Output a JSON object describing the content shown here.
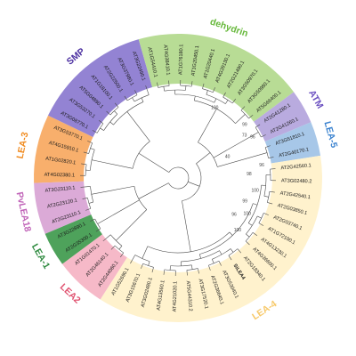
{
  "groups": [
    {
      "name": "LEA-3",
      "color": "#f7a85f",
      "text_color": "#f08a1e",
      "leaves": [
        "AT4G02380.1",
        "AT1G02820.1",
        "AT4G15910.1",
        "AT3G53770.1"
      ]
    },
    {
      "name": "SMP",
      "color": "#8a78cf",
      "text_color": "#4b2fa0",
      "leaves": [
        "AT3G08770.1",
        "AT3G53270.1",
        "AT5G04890.1",
        "AT1G18100.1",
        "AT2G22500.1",
        "AT3G37980.1",
        "AT3G22490.1"
      ]
    },
    {
      "name": "dehydrin",
      "color": "#b2d98c",
      "text_color": "#66b83a",
      "leaves": [
        "AT1G54410.1",
        "AT4G38410.1",
        "AT1G76180.1",
        "AT1G20450.1",
        "AT1G20440.1",
        "AT4G39130.1",
        "AT2G21490.1",
        "AT3G50970.1",
        "AT3G50980.1",
        "AT5G66400.1"
      ]
    },
    {
      "name": "ATM",
      "color": "#b3a4dc",
      "text_color": "#6a4fc0",
      "leaves": [
        "AT2G41280.1",
        "AT2G41260.1"
      ]
    },
    {
      "name": "LEA-5",
      "color": "#9fc2e6",
      "text_color": "#3a82cf",
      "leaves": [
        "AT3G51810.1",
        "AT2G40170.1"
      ]
    },
    {
      "name": "LEA-4",
      "color": "#fff1c9",
      "text_color": "#f7c96a",
      "leaves": [
        "AT2G42560.1",
        "AT3G02480.2",
        "AT2G42540.1",
        "AT2G03850.1",
        "AT2G03740.1",
        "AT1G72100.1",
        "AT4G13230.1",
        "AT4G36600.1",
        "AT2G18340.1",
        "SiLEA4",
        "AT3G53040.1",
        "AT2G36640.1",
        "AT3G17520.1",
        "AT5G44310.2",
        "AT4G21020.1",
        "AT4G13560.1",
        "AT3G02480.1",
        "AT3G15670.1",
        "AT1G52690.1"
      ]
    },
    {
      "name": "LEA2",
      "color": "#f5b3c3",
      "text_color": "#e0516f",
      "leaves": [
        "AT2G44060.1",
        "AT2G46140.1",
        "AT1G01470.1"
      ]
    },
    {
      "name": "LEA-1",
      "color": "#3f9a4d",
      "text_color": "#2e8a3f",
      "leaves": [
        "AT2G35300.1",
        "AT3G22890.1"
      ]
    },
    {
      "name": "PvLEA18",
      "color": "#d8a3d4",
      "text_color": "#c064b8",
      "leaves": [
        "AT2G23110.1",
        "AT2G23120.1",
        "AT3G23110.1"
      ]
    }
  ],
  "highlight": {
    "leaf": "SiLEA4",
    "color": "#e3242b"
  },
  "bootstrap": [
    "100",
    "99",
    "73",
    "96",
    "40",
    "96",
    "98",
    "100",
    "99",
    "100",
    "96",
    "100"
  ]
}
